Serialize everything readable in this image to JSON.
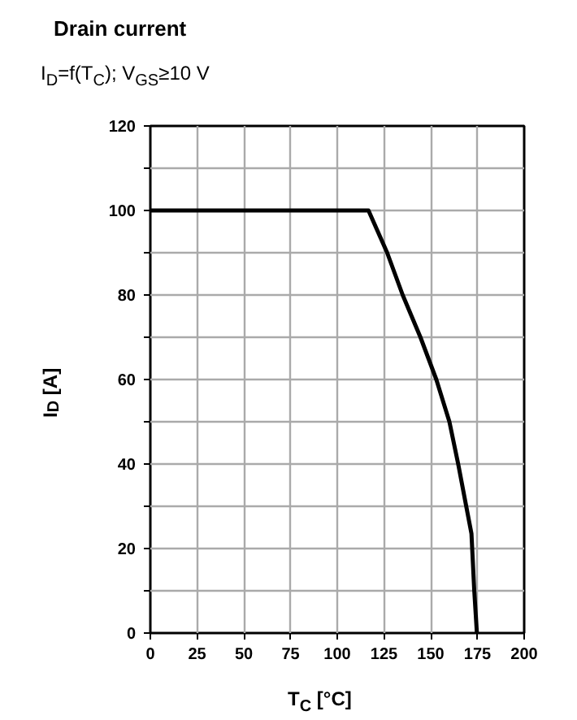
{
  "chart_data": {
    "type": "line",
    "title": "Drain current",
    "subtitle": "I$_{D}$=f(T$_{C}$); V$_{GS}$≥10 V",
    "xlabel": "T$_{C}$ [°C]",
    "ylabel": "I$_{D}$ [A]",
    "x": [
      0,
      116.7,
      126.7,
      135,
      144.5,
      153,
      160,
      164.7,
      169,
      171.8,
      173.3,
      174.7
    ],
    "series": [
      {
        "color": "#000000",
        "values": [
          100,
          100,
          90,
          80,
          70,
          60,
          50,
          40,
          30,
          23.5,
          10,
          0
        ]
      }
    ],
    "xlim": [
      0,
      200
    ],
    "xticks": [
      0,
      25,
      50,
      75,
      100,
      125,
      150,
      175,
      200
    ],
    "ylim": [
      0,
      120
    ],
    "yticks": [
      0,
      {
        "value": 10,
        "label": null
      },
      20,
      {
        "value": 30,
        "label": null
      },
      40,
      {
        "value": 50,
        "label": null
      },
      60,
      {
        "value": 70,
        "label": null
      },
      80,
      {
        "value": 90,
        "label": null
      },
      100,
      {
        "value": 110,
        "label": null
      },
      120
    ],
    "grid": true
  }
}
